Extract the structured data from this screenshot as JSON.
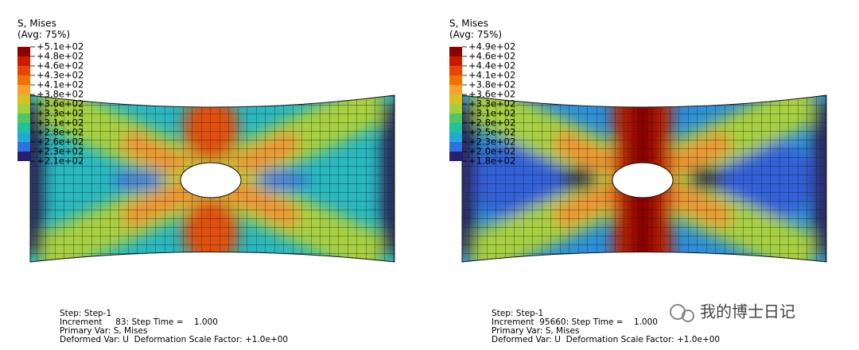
{
  "panels": [
    {
      "legend_title": "S, Mises",
      "legend_subtitle": "(Avg: 75%)",
      "legend_labels": [
        "+5.1e+02",
        "+4.8e+02",
        "+4.6e+02",
        "+4.3e+02",
        "+4.1e+02",
        "+3.8e+02",
        "+3.6e+02",
        "+3.3e+02",
        "+3.1e+02",
        "+2.8e+02",
        "+2.6e+02",
        "+2.3e+02",
        "+2.1e+02"
      ],
      "info": [
        "Step: Step-1",
        "Increment     83: Step Time =    1.000",
        "Primary Var: S, Mises",
        "Deformed Var: U  Deformation Scale Factor: +1.0e+00"
      ]
    },
    {
      "legend_title": "S, Mises",
      "legend_subtitle": "(Avg: 75%)",
      "legend_labels": [
        "+4.9e+02",
        "+4.6e+02",
        "+4.4e+02",
        "+4.1e+02",
        "+3.8e+02",
        "+3.6e+02",
        "+3.3e+02",
        "+3.1e+02",
        "+2.8e+02",
        "+2.5e+02",
        "+2.3e+02",
        "+2.0e+02",
        "+1.8e+02"
      ],
      "info": [
        "Step: Step-1",
        "Increment  95660: Step Time =    1.000",
        "Primary Var: S, Mises",
        "Deformed Var: U  Deformation Scale Factor: +1.0e+00"
      ]
    }
  ],
  "watermark": "我的博士日记"
}
